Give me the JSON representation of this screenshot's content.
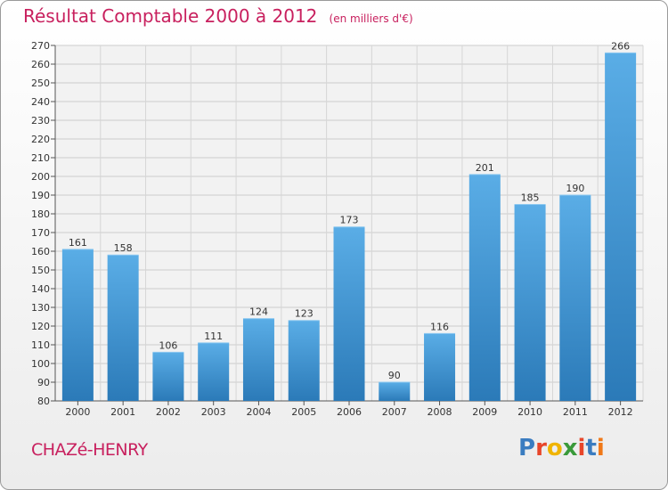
{
  "title": "Résultat Comptable 2000 à 2012",
  "subtitle": "(en milliers d'€)",
  "commune": "CHAZé-HENRY",
  "logo": {
    "text": "Proxiti",
    "colors": [
      "#3a7cc0",
      "#e8462a",
      "#f0b400",
      "#3a9a3a",
      "#e8462a",
      "#3a7cc0",
      "#f07818"
    ]
  },
  "colors": {
    "bar_top": "#5aade6",
    "bar_bottom": "#2b7ab8",
    "accent": "#c8205e"
  },
  "chart_data": {
    "type": "bar",
    "categories": [
      "2000",
      "2001",
      "2002",
      "2003",
      "2004",
      "2005",
      "2006",
      "2007",
      "2008",
      "2009",
      "2010",
      "2011",
      "2012"
    ],
    "values": [
      161,
      158,
      106,
      111,
      124,
      123,
      173,
      90,
      116,
      201,
      185,
      190,
      266
    ],
    "ylim": [
      80,
      270
    ],
    "yticks": [
      80,
      90,
      100,
      110,
      120,
      130,
      140,
      150,
      160,
      170,
      180,
      190,
      200,
      210,
      220,
      230,
      240,
      250,
      260,
      270
    ],
    "grid": true
  }
}
